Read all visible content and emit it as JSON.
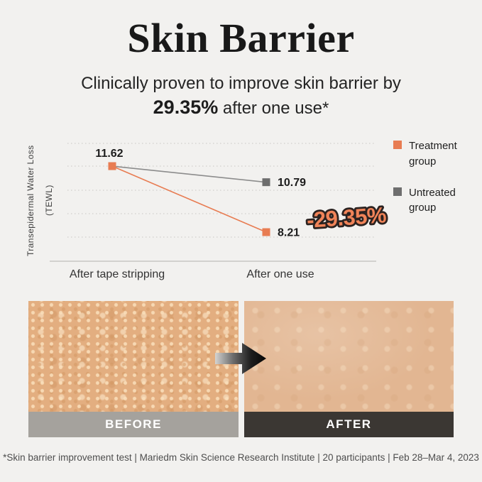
{
  "page": {
    "title": "Skin Barrier",
    "subtitle_line1": "Clinically proven to improve skin barrier by",
    "subtitle_highlight": "29.35%",
    "subtitle_tail": " after one use*",
    "footnote": "*Skin barrier improvement test | Mariedm Skin Science Research Institute | 20 participants | Feb 28–Mar 4, 2023"
  },
  "chart_data": {
    "type": "line",
    "ylabel": "Transepidermal Water Loss (TEWL)",
    "categories": [
      "After tape stripping",
      "After one use"
    ],
    "series": [
      {
        "name": "Treatment group",
        "values": [
          11.62,
          8.21
        ],
        "color": "#e87c52",
        "marker_color": "#e87c52"
      },
      {
        "name": "Untreated group",
        "values": [
          11.62,
          10.79
        ],
        "color": "#8c8c8c",
        "marker_color": "#6e6e6e"
      }
    ],
    "annotation": {
      "text": "-29.35%",
      "color": "#f08358",
      "outline": "#2b2220"
    },
    "legend_position": "right",
    "grid": "horizontal-dotted",
    "ylim": [
      7.5,
      13.0
    ],
    "background": "#f2f1ef"
  },
  "comparison": {
    "before_label": "BEFORE",
    "after_label": "AFTER",
    "arrow_icon": "right-arrow"
  }
}
